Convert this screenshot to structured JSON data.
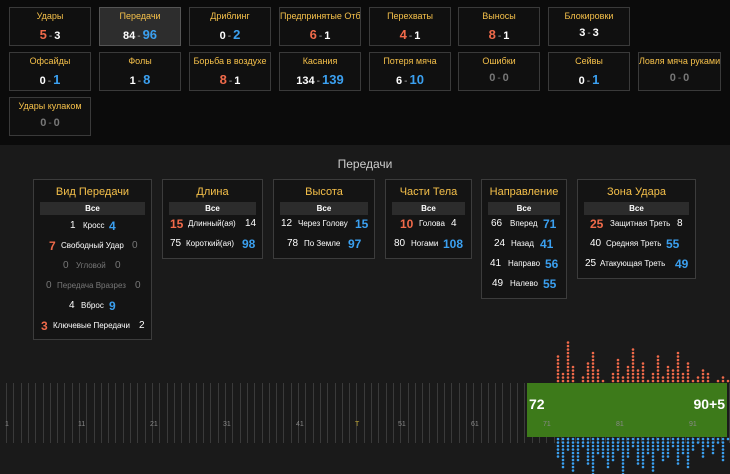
{
  "tiles": [
    {
      "id": "udary",
      "label": "Удары",
      "a": "5",
      "b": "3",
      "aColor": "red",
      "bColor": "white",
      "active": false,
      "dim": false
    },
    {
      "id": "peredachi",
      "label": "Передачи",
      "a": "84",
      "b": "96",
      "aColor": "white",
      "bColor": "blue",
      "active": true,
      "dim": false
    },
    {
      "id": "dribling",
      "label": "Дриблинг",
      "a": "0",
      "b": "2",
      "aColor": "white",
      "bColor": "blue",
      "active": false,
      "dim": false
    },
    {
      "id": "otbory",
      "label": "Предпринятые Отборы Мяча",
      "a": "6",
      "b": "1",
      "aColor": "red",
      "bColor": "white",
      "active": false,
      "dim": false
    },
    {
      "id": "perehvaty",
      "label": "Перехваты",
      "a": "4",
      "b": "1",
      "aColor": "red",
      "bColor": "white",
      "active": false,
      "dim": false
    },
    {
      "id": "vynosy",
      "label": "Выносы",
      "a": "8",
      "b": "1",
      "aColor": "red",
      "bColor": "white",
      "active": false,
      "dim": false
    },
    {
      "id": "blokirovki",
      "label": "Блокировки",
      "a": "3",
      "b": "3",
      "aColor": "white",
      "bColor": "white",
      "active": false,
      "dim": false
    },
    {
      "id": "ofsaidy",
      "label": "Офсайды",
      "a": "0",
      "b": "1",
      "aColor": "white",
      "bColor": "blue",
      "active": false,
      "dim": false
    },
    {
      "id": "foly",
      "label": "Фолы",
      "a": "1",
      "b": "8",
      "aColor": "white",
      "bColor": "blue",
      "active": false,
      "dim": false
    },
    {
      "id": "vozduh",
      "label": "Борьба в воздухе",
      "a": "8",
      "b": "1",
      "aColor": "red",
      "bColor": "white",
      "active": false,
      "dim": false
    },
    {
      "id": "kasaniya",
      "label": "Касания",
      "a": "134",
      "b": "139",
      "aColor": "white",
      "bColor": "blue",
      "active": false,
      "dim": false
    },
    {
      "id": "poterya",
      "label": "Потеря мяча",
      "a": "6",
      "b": "10",
      "aColor": "white",
      "bColor": "blue",
      "active": false,
      "dim": false
    },
    {
      "id": "oshibki",
      "label": "Ошибки",
      "a": "0",
      "b": "0",
      "aColor": "white",
      "bColor": "white",
      "active": false,
      "dim": true
    },
    {
      "id": "seivy",
      "label": "Сейвы",
      "a": "0",
      "b": "1",
      "aColor": "white",
      "bColor": "blue",
      "active": false,
      "dim": false
    },
    {
      "id": "lovlya",
      "label": "Ловля мяча руками",
      "a": "0",
      "b": "0",
      "aColor": "white",
      "bColor": "white",
      "active": false,
      "dim": true
    },
    {
      "id": "kulakom",
      "label": "Удары кулаком",
      "a": "0",
      "b": "0",
      "aColor": "white",
      "bColor": "white",
      "active": false,
      "dim": true
    }
  ],
  "section_title": "Передачи",
  "all_label": "Все",
  "cards": {
    "vid": {
      "title": "Вид Передачи",
      "rows": [
        {
          "a": "1",
          "label": "Кросс",
          "b": "4"
        },
        {
          "a": "7",
          "label": "Свободный Удар",
          "b": "0"
        },
        {
          "a": "0",
          "label": "Угловой",
          "b": "0"
        },
        {
          "a": "0",
          "label": "Передача Вразрез",
          "b": "0"
        },
        {
          "a": "4",
          "label": "Вброс",
          "b": "9"
        },
        {
          "a": "3",
          "label": "Ключевые Передачи",
          "b": "2"
        }
      ]
    },
    "dlina": {
      "title": "Длина",
      "rows": [
        {
          "a": "15",
          "label": "Длинный(ая)",
          "b": "14"
        },
        {
          "a": "75",
          "label": "Короткий(ая)",
          "b": "98"
        }
      ]
    },
    "vysota": {
      "title": "Высота",
      "rows": [
        {
          "a": "12",
          "label": "Через Голову",
          "b": "15"
        },
        {
          "a": "78",
          "label": "По Земле",
          "b": "97"
        }
      ]
    },
    "chasti": {
      "title": "Части Тела",
      "rows": [
        {
          "a": "10",
          "label": "Голова",
          "b": "4"
        },
        {
          "a": "80",
          "label": "Ногами",
          "b": "108"
        }
      ]
    },
    "napr": {
      "title": "Направление",
      "rows": [
        {
          "a": "66",
          "label": "Вперед",
          "b": "71"
        },
        {
          "a": "24",
          "label": "Назад",
          "b": "41"
        },
        {
          "a": "41",
          "label": "Направо",
          "b": "56"
        },
        {
          "a": "49",
          "label": "Налево",
          "b": "55"
        }
      ]
    },
    "zona": {
      "title": "Зона Удара",
      "rows": [
        {
          "a": "25",
          "label": "Защитная Треть",
          "b": "8"
        },
        {
          "a": "40",
          "label": "Средняя Треть",
          "b": "55"
        },
        {
          "a": "25",
          "label": "Атакующая Треть",
          "b": "49"
        }
      ]
    }
  },
  "timeline": {
    "minute_labels": [
      "1",
      "11",
      "21",
      "31",
      "41",
      "T",
      "51",
      "61",
      "71",
      "81",
      "91"
    ],
    "left_score": "72",
    "right_score": "90+5"
  },
  "colors": {
    "home": "#f06a4a",
    "away": "#3ba0f0",
    "accent": "#f5c04a",
    "window": "#3d7a1a"
  }
}
